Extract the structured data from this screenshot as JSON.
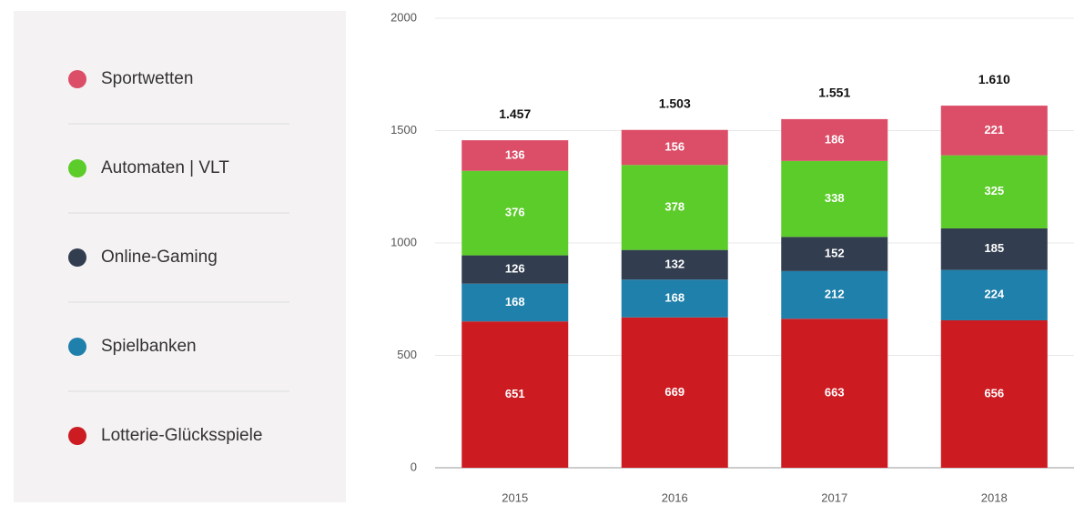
{
  "chart_data": {
    "type": "stacked-bar",
    "categories": [
      "2015",
      "2016",
      "2017",
      "2018"
    ],
    "series": [
      {
        "name": "Lotterie-Glücksspiele",
        "color": "#cc1c22",
        "values": [
          651,
          669,
          663,
          656
        ]
      },
      {
        "name": "Spielbanken",
        "color": "#1f80ab",
        "values": [
          168,
          168,
          212,
          224
        ]
      },
      {
        "name": "Online-Gaming",
        "color": "#323e50",
        "values": [
          126,
          132,
          152,
          185
        ]
      },
      {
        "name": "Automaten | VLT",
        "color": "#5ccc2a",
        "values": [
          376,
          378,
          338,
          325
        ]
      },
      {
        "name": "Sportwetten",
        "color": "#dc4d67",
        "values": [
          136,
          156,
          186,
          221
        ]
      }
    ],
    "totals": {
      "values": [
        1457,
        1503,
        1551,
        1610
      ],
      "value_labels": [
        "1.457",
        "1.503",
        "1.551",
        "1.610"
      ]
    },
    "ylim": [
      0,
      2000
    ],
    "yticks": [
      0,
      500,
      1000,
      1500,
      2000
    ],
    "grid": true,
    "legend": "left"
  }
}
